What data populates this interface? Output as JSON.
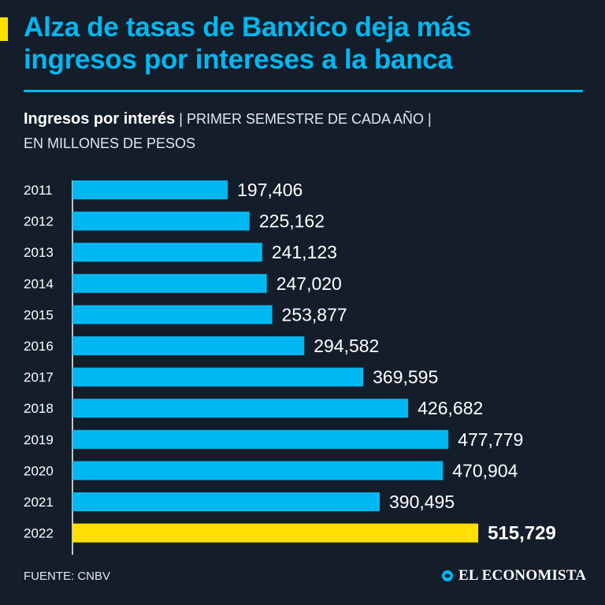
{
  "header": {
    "title": "Alza de tasas de Banxico deja más ingresos por intereses a la banca"
  },
  "subtitle": {
    "bold": "Ingresos por interés",
    "rest_line1": " | PRIMER SEMESTRE DE CADA AÑO |",
    "rest_line2": "EN MILLONES DE PESOS"
  },
  "footer": {
    "source": "FUENTE: CNBV",
    "brand": "EL ECONOMISTA"
  },
  "colors": {
    "background": "#141d2a",
    "accent_blue": "#00b8f1",
    "highlight_yellow": "#ffe000"
  },
  "chart_data": {
    "type": "bar",
    "orientation": "horizontal",
    "title": "Ingresos por interés",
    "xlabel": "",
    "ylabel": "",
    "xlim": [
      0,
      530000
    ],
    "categories": [
      "2011",
      "2012",
      "2013",
      "2014",
      "2015",
      "2016",
      "2017",
      "2018",
      "2019",
      "2020",
      "2021",
      "2022"
    ],
    "values": [
      197406,
      225162,
      241123,
      247020,
      253877,
      294582,
      369595,
      426682,
      477779,
      470904,
      390495,
      515729
    ],
    "value_labels": [
      "197,406",
      "225,162",
      "241,123",
      "247,020",
      "253,877",
      "294,582",
      "369,595",
      "426,682",
      "477,779",
      "470,904",
      "390,495",
      "515,729"
    ],
    "highlight_index": 11
  }
}
